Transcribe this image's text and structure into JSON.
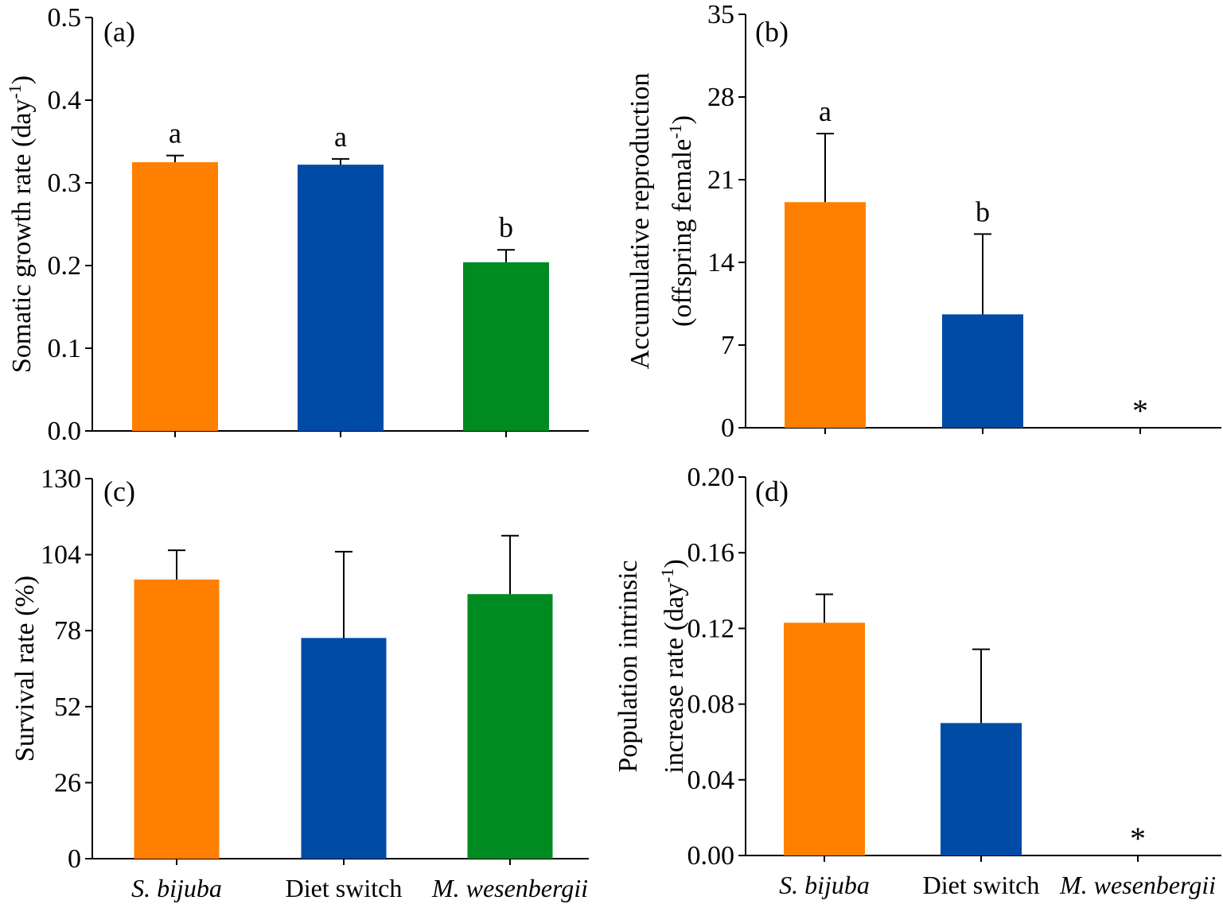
{
  "colors": {
    "s_bijuba": "#FF8000",
    "diet_switch": "#004BA6",
    "m_wesenbergii": "#008A22",
    "axis": "#000000"
  },
  "chart_data": [
    {
      "panel": "(a)",
      "type": "bar",
      "categories": [
        "S. bijuba",
        "Diet switch",
        "M. wesenbergii"
      ],
      "category_labels_shown": false,
      "values": [
        0.325,
        0.322,
        0.204
      ],
      "errors": [
        0.008,
        0.007,
        0.015
      ],
      "significance": [
        "a",
        "a",
        "b"
      ],
      "ylabel": "Somatic growth rate (day",
      "ylabel_sup": "-1",
      "ylabel_close": ")",
      "ylim": [
        0,
        0.5
      ],
      "yticks": [
        0.0,
        0.1,
        0.2,
        0.3,
        0.4,
        0.5
      ],
      "ytick_labels": [
        "0.0",
        "0.1",
        "0.2",
        "0.3",
        "0.4",
        "0.5"
      ]
    },
    {
      "panel": "(b)",
      "type": "bar",
      "categories": [
        "S. bijuba",
        "Diet switch",
        "M. wesenbergii"
      ],
      "category_labels_shown": false,
      "values": [
        19.1,
        9.6,
        0
      ],
      "errors": [
        5.8,
        6.8,
        0
      ],
      "significance": [
        "a",
        "b",
        "*"
      ],
      "ylabel_line1": "Accumulative reproduction",
      "ylabel_line2": "(offspring female",
      "ylabel_sup": "-1",
      "ylabel_close": ")",
      "ylim": [
        0,
        35
      ],
      "yticks": [
        0,
        7,
        14,
        21,
        28,
        35
      ],
      "ytick_labels": [
        "0",
        "7",
        "14",
        "21",
        "28",
        "35"
      ]
    },
    {
      "panel": "(c)",
      "type": "bar",
      "categories": [
        "S. bijuba",
        "Diet switch",
        "M. wesenbergii"
      ],
      "category_labels_shown": true,
      "values": [
        95.5,
        75.5,
        90.5
      ],
      "errors": [
        10,
        29.5,
        20
      ],
      "significance": [
        "",
        "",
        ""
      ],
      "ylabel": "Survival rate (%)",
      "ylim": [
        0,
        130
      ],
      "yticks": [
        0,
        26,
        52,
        78,
        104,
        130
      ],
      "ytick_labels": [
        "0",
        "26",
        "52",
        "78",
        "104",
        "130"
      ]
    },
    {
      "panel": "(d)",
      "type": "bar",
      "categories": [
        "S. bijuba",
        "Diet switch",
        "M. wesenbergii"
      ],
      "category_labels_shown": true,
      "values": [
        0.123,
        0.07,
        0
      ],
      "errors": [
        0.015,
        0.039,
        0
      ],
      "significance": [
        "",
        "",
        "*"
      ],
      "ylabel_line1": "Population intrinsic",
      "ylabel_line2": "increase rate (day",
      "ylabel_sup": "-1",
      "ylabel_close": ")",
      "ylim": [
        0,
        0.2
      ],
      "yticks": [
        0.0,
        0.04,
        0.08,
        0.12,
        0.16,
        0.2
      ],
      "ytick_labels": [
        "0.00",
        "0.04",
        "0.08",
        "0.12",
        "0.16",
        "0.20"
      ]
    }
  ]
}
